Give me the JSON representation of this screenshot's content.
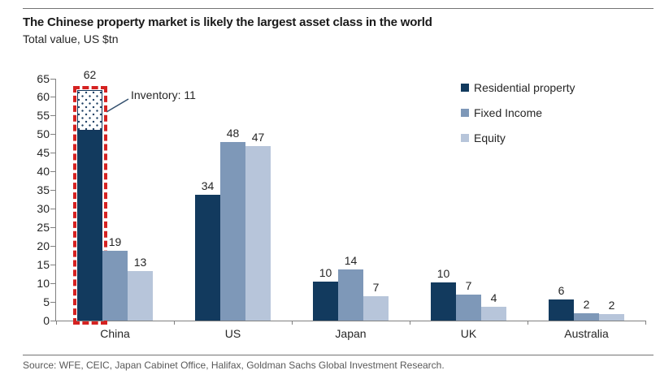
{
  "header": {
    "title": "The Chinese property market is likely the largest asset class in the world",
    "subtitle": "Total value, US $tn"
  },
  "chart_data": {
    "type": "bar",
    "title": "The Chinese property market is likely the largest asset class in the world",
    "unit_label": "Total value, US $tn",
    "categories": [
      "China",
      "US",
      "Japan",
      "UK",
      "Australia"
    ],
    "series": [
      {
        "name": "Residential property",
        "color": "#123a5e",
        "values": [
          62,
          34,
          10,
          10,
          6
        ],
        "bar_heights": [
          62,
          33.8,
          10.4,
          10.2,
          5.7
        ]
      },
      {
        "name": "Fixed Income",
        "color": "#7e98b8",
        "values": [
          19,
          48,
          14,
          7,
          2
        ],
        "bar_heights": [
          18.7,
          47.9,
          13.8,
          6.9,
          1.9
        ]
      },
      {
        "name": "Equity",
        "color": "#b7c5da",
        "values": [
          13,
          47,
          7,
          4,
          2
        ],
        "bar_heights": [
          13.4,
          46.9,
          6.6,
          3.6,
          1.8
        ]
      }
    ],
    "ylim": [
      0,
      65
    ],
    "y_tick_step": 5,
    "grid": false,
    "legend_position": "top-right",
    "annotation": {
      "text": "Inventory: 11",
      "category": "China",
      "series": "Residential property",
      "inventory_value": 11,
      "solid_value": 51
    },
    "highlight": {
      "style": "red-dashed-outline",
      "category": "China",
      "series": "Residential property",
      "color": "#d52221"
    }
  },
  "footer": {
    "source": "Source: WFE, CEIC, Japan Cabinet Office, Halifax, Goldman Sachs Global Investment Research."
  }
}
